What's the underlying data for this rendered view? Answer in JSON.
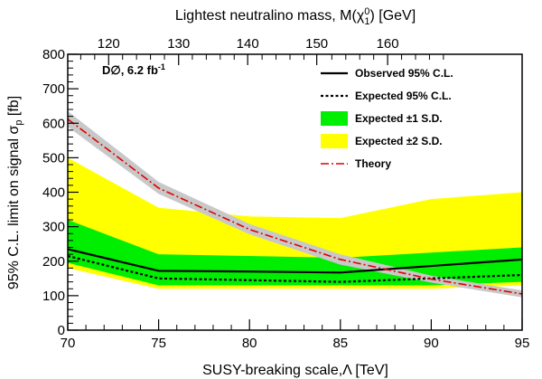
{
  "chart_data": {
    "type": "line",
    "title": "",
    "experiment_label": "D∅, 6.2 fb",
    "experiment_label_sup": "-1",
    "xlabel": "SUSY-breaking scale,Λ [TeV]",
    "ylabel_main": "95% C.L. limit on signal σ",
    "ylabel_sub": "p",
    "ylabel_tail": " [fb]",
    "top_xlabel_prefix": "Lightest neutralino mass, M(χ",
    "top_xlabel_sup": "0",
    "top_xlabel_sub": "1",
    "top_xlabel_suffix": ") [GeV]",
    "xlim": [
      70,
      95
    ],
    "ylim": [
      0,
      800
    ],
    "x_ticks": [
      70,
      75,
      80,
      85,
      90,
      95
    ],
    "y_ticks": [
      0,
      100,
      200,
      300,
      400,
      500,
      600,
      700,
      800
    ],
    "top_ticks": [
      {
        "label": "120",
        "x": 72.25
      },
      {
        "label": "130",
        "x": 76.1
      },
      {
        "label": "140",
        "x": 79.9
      },
      {
        "label": "150",
        "x": 83.7
      },
      {
        "label": "160",
        "x": 87.6
      }
    ],
    "x": [
      70,
      75,
      80,
      85,
      90,
      95
    ],
    "band_2sd": {
      "name": "Expected ±2 S.D.",
      "color": "#ffff00",
      "low": [
        180,
        120,
        120,
        120,
        120,
        130
      ],
      "high": [
        500,
        355,
        330,
        325,
        380,
        400
      ]
    },
    "band_1sd": {
      "name": "Expected ±1 S.D.",
      "color": "#00ee00",
      "low": [
        195,
        130,
        130,
        130,
        130,
        140
      ],
      "high": [
        320,
        220,
        215,
        210,
        225,
        240
      ]
    },
    "theory_band": {
      "color": "#c8c8c8",
      "low": [
        590,
        395,
        278,
        190,
        138,
        95
      ],
      "high": [
        635,
        430,
        308,
        220,
        158,
        115
      ]
    },
    "series": [
      {
        "name": "Observed 95% C.L.",
        "style": "solid",
        "color": "#000000",
        "values": [
          235,
          172,
          170,
          167,
          186,
          205
        ]
      },
      {
        "name": "Expected 95% C.L.",
        "style": "dotted",
        "color": "#000000",
        "values": [
          215,
          150,
          145,
          140,
          150,
          160
        ]
      },
      {
        "name": "Theory",
        "style": "dashdot",
        "color": "#e00000",
        "values": [
          612,
          412,
          292,
          205,
          148,
          105
        ]
      }
    ],
    "legend": [
      {
        "label": "Observed 95% C.L.",
        "kind": "solid"
      },
      {
        "label": "Expected 95% C.L.",
        "kind": "dotted"
      },
      {
        "label": "Expected ±1 S.D.",
        "kind": "box",
        "color": "#00ee00"
      },
      {
        "label": "Expected ±2 S.D.",
        "kind": "box",
        "color": "#ffff00"
      },
      {
        "label": "Theory",
        "kind": "dashdot"
      }
    ],
    "legend_position": "top-right",
    "grid": false
  }
}
